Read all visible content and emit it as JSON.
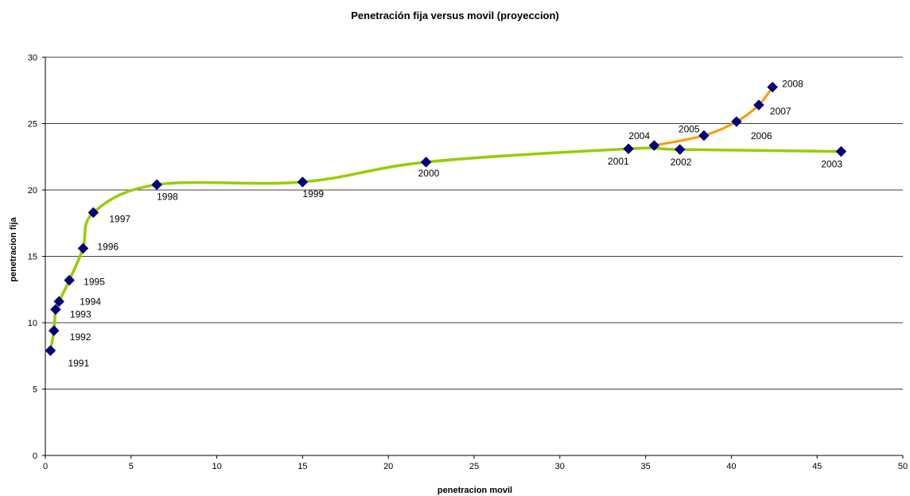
{
  "chart_data": {
    "type": "scatter",
    "title": "Penetración fija versus movil (proyeccion)",
    "xlabel": "penetracion movil",
    "ylabel": "penetracion fija",
    "xlim": [
      0,
      50
    ],
    "ylim": [
      0,
      30
    ],
    "x_ticks": [
      0,
      5,
      10,
      15,
      20,
      25,
      30,
      35,
      40,
      45,
      50
    ],
    "y_ticks": [
      0,
      5,
      10,
      15,
      20,
      25,
      30
    ],
    "grid": "horizontal",
    "legend": "none",
    "marker_color": "#000080",
    "series": [
      {
        "color": "#99cc00",
        "points": [
          {
            "x": 0.3,
            "y": 7.9,
            "label": "1991"
          },
          {
            "x": 0.5,
            "y": 9.4,
            "label": "1992"
          },
          {
            "x": 0.6,
            "y": 11.0,
            "label": "1993"
          },
          {
            "x": 0.8,
            "y": 11.6,
            "label": "1994"
          },
          {
            "x": 1.4,
            "y": 13.2,
            "label": "1995"
          },
          {
            "x": 2.2,
            "y": 15.6,
            "label": "1996"
          },
          {
            "x": 2.8,
            "y": 18.3,
            "label": "1997"
          },
          {
            "x": 6.5,
            "y": 20.4,
            "label": "1998"
          },
          {
            "x": 15.0,
            "y": 20.6,
            "label": "1999"
          },
          {
            "x": 22.2,
            "y": 22.1,
            "label": "2000"
          },
          {
            "x": 34.0,
            "y": 23.1,
            "label": "2001"
          },
          {
            "x": 37.0,
            "y": 23.05,
            "label": "2002"
          },
          {
            "x": 46.4,
            "y": 22.9,
            "label": "2003"
          }
        ]
      },
      {
        "color": "#ff9900",
        "points": [
          {
            "x": 35.5,
            "y": 23.35,
            "label": "2004"
          },
          {
            "x": 38.4,
            "y": 24.1,
            "label": "2005"
          },
          {
            "x": 40.3,
            "y": 25.15,
            "label": "2006"
          },
          {
            "x": 41.6,
            "y": 26.4,
            "label": "2007"
          },
          {
            "x": 42.4,
            "y": 27.75,
            "label": "2008"
          }
        ]
      }
    ]
  }
}
